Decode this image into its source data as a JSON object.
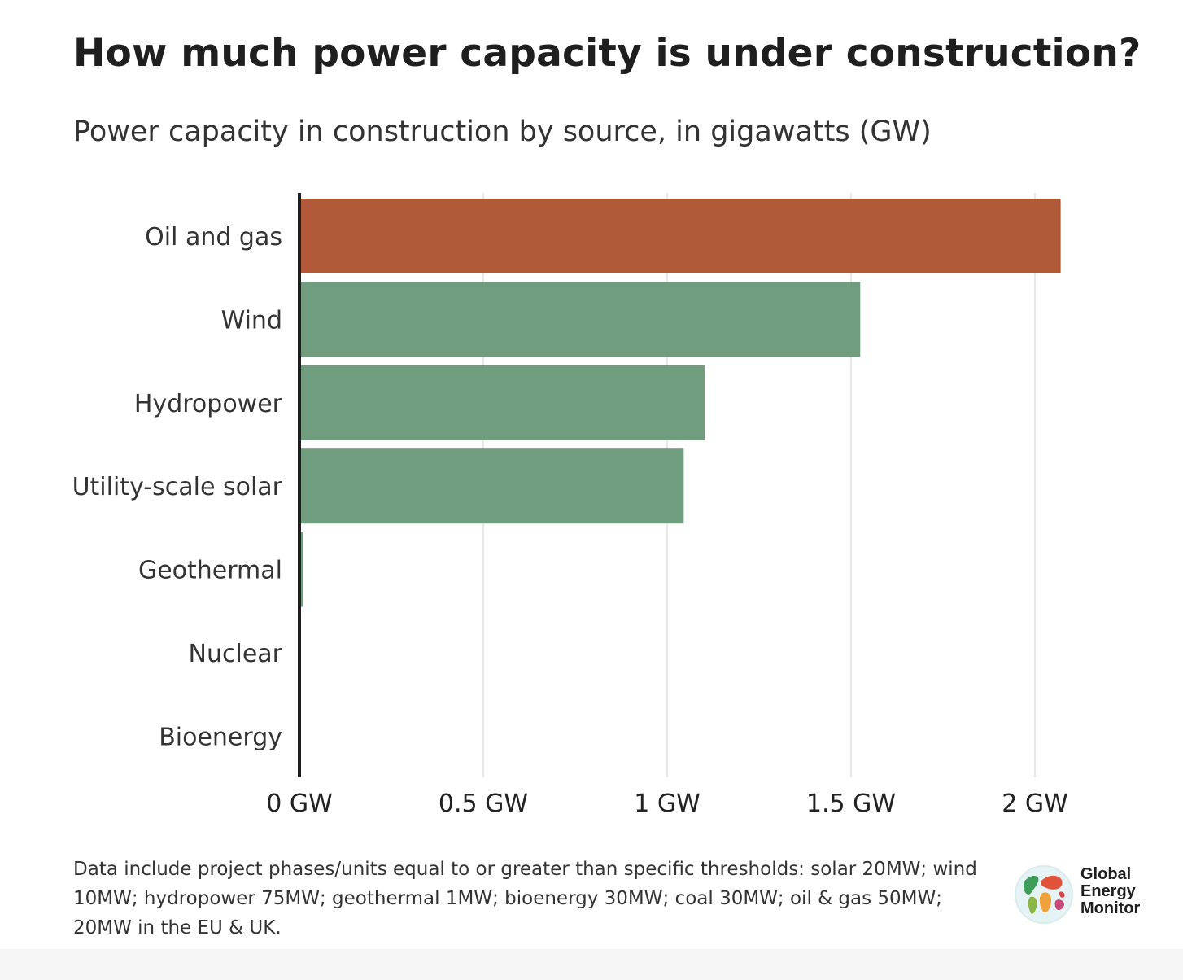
{
  "header": {
    "title": "How much power capacity is under construction?",
    "subtitle": "Power capacity in construction by source, in gigawatts (GW)"
  },
  "chart_data": {
    "type": "bar",
    "orientation": "horizontal",
    "title": "How much power capacity is under construction?",
    "subtitle": "Power capacity in construction by source, in gigawatts (GW)",
    "categories": [
      "Oil and gas",
      "Wind",
      "Hydropower",
      "Utility-scale solar",
      "Geothermal",
      "Nuclear",
      "Bioenergy"
    ],
    "values": [
      2.07,
      1.525,
      1.102,
      1.045,
      0.01,
      0,
      0
    ],
    "colors": [
      "#b05a3a",
      "#6f9d7e",
      "#6f9d7e",
      "#6f9d7e",
      "#6f9d7e",
      "#6f9d7e",
      "#6f9d7e"
    ],
    "xlim": [
      0,
      2.07
    ],
    "xticks": [
      0,
      0.5,
      1,
      1.5,
      2
    ],
    "xtick_labels": [
      "0 GW",
      "0.5 GW",
      "1 GW",
      "1.5 GW",
      "2 GW"
    ],
    "xlabel": "",
    "ylabel": "",
    "grid": "vertical",
    "legend": "none"
  },
  "footer": {
    "note": "Data include project phases/units equal to or greater than specific thresholds: solar 20MW; wind 10MW; hydropower 75MW; geothermal 1MW; bioenergy 30MW; coal 30MW; oil & gas 50MW; 20MW in the EU & UK.",
    "logo_text": [
      "Global",
      "Energy",
      "Monitor"
    ]
  },
  "colors": {
    "fossil": "#b05a3a",
    "renewable": "#6f9d7e",
    "axis": "#1f1f1f",
    "grid": "#d9d9d9"
  },
  "icons": {
    "logo": "globe-icon"
  }
}
